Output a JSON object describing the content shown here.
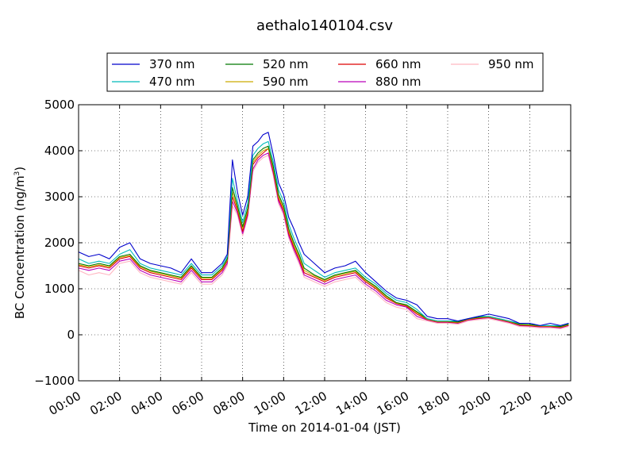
{
  "chart_data": {
    "type": "line",
    "title": "aethalo140104.csv",
    "xlabel": "Time on 2014-01-04 (JST)",
    "ylabel": "BC Concentration (ng/m",
    "ylabel_sup": "3",
    "ylabel_end": ")",
    "xlim": [
      0,
      24
    ],
    "ylim": [
      -1000,
      5000
    ],
    "x_ticks": [
      0,
      2,
      4,
      6,
      8,
      10,
      12,
      14,
      16,
      18,
      20,
      22,
      24
    ],
    "x_tick_labels": [
      "00:00",
      "02:00",
      "04:00",
      "06:00",
      "08:00",
      "10:00",
      "12:00",
      "14:00",
      "16:00",
      "18:00",
      "20:00",
      "22:00",
      "24:00"
    ],
    "y_ticks": [
      -1000,
      0,
      1000,
      2000,
      3000,
      4000,
      5000
    ],
    "y_tick_labels": [
      "−1000",
      "0",
      "1000",
      "2000",
      "3000",
      "4000",
      "5000"
    ],
    "grid": true,
    "legend_position": "top",
    "x_hours": [
      0,
      0.5,
      1,
      1.5,
      2,
      2.5,
      3,
      3.5,
      4,
      4.5,
      5,
      5.5,
      6,
      6.5,
      7,
      7.25,
      7.5,
      7.75,
      8,
      8.25,
      8.5,
      8.75,
      9,
      9.25,
      9.5,
      9.75,
      10,
      10.25,
      10.5,
      10.75,
      11,
      11.5,
      12,
      12.5,
      13,
      13.5,
      14,
      14.5,
      15,
      15.5,
      16,
      16.5,
      17,
      17.5,
      18,
      18.5,
      19,
      19.5,
      20,
      20.5,
      21,
      21.5,
      22,
      22.5,
      23,
      23.5,
      23.9
    ],
    "series": [
      {
        "name": "370 nm",
        "color": "#0000cc",
        "values": [
          1800,
          1700,
          1750,
          1650,
          1900,
          2000,
          1650,
          1550,
          1500,
          1450,
          1350,
          1650,
          1350,
          1350,
          1550,
          1750,
          3800,
          3100,
          2600,
          3000,
          4100,
          4200,
          4350,
          4400,
          3900,
          3300,
          3050,
          2550,
          2300,
          2000,
          1750,
          1550,
          1350,
          1450,
          1500,
          1600,
          1350,
          1150,
          950,
          800,
          750,
          650,
          400,
          350,
          350,
          300,
          350,
          400,
          450,
          400,
          350,
          250,
          250,
          200,
          250,
          200,
          250
        ]
      },
      {
        "name": "470 nm",
        "color": "#00bbbb",
        "values": [
          1650,
          1550,
          1600,
          1550,
          1750,
          1850,
          1550,
          1450,
          1400,
          1350,
          1300,
          1550,
          1300,
          1300,
          1500,
          1700,
          3400,
          2900,
          2450,
          2850,
          3900,
          4050,
          4150,
          4200,
          3750,
          3150,
          2900,
          2400,
          2100,
          1850,
          1550,
          1400,
          1250,
          1350,
          1400,
          1450,
          1250,
          1100,
          900,
          750,
          700,
          550,
          350,
          300,
          300,
          300,
          350,
          400,
          400,
          350,
          300,
          250,
          250,
          200,
          200,
          200,
          250
        ]
      },
      {
        "name": "520 nm",
        "color": "#007700",
        "values": [
          1550,
          1500,
          1550,
          1500,
          1700,
          1750,
          1500,
          1400,
          1350,
          1300,
          1250,
          1500,
          1250,
          1250,
          1450,
          1650,
          3200,
          2800,
          2350,
          2750,
          3800,
          3950,
          4050,
          4100,
          3650,
          3050,
          2800,
          2300,
          2000,
          1750,
          1450,
          1300,
          1200,
          1300,
          1350,
          1400,
          1200,
          1050,
          850,
          700,
          650,
          500,
          350,
          300,
          300,
          280,
          350,
          380,
          400,
          350,
          300,
          230,
          220,
          200,
          200,
          180,
          230
        ]
      },
      {
        "name": "590 nm",
        "color": "#ccaa00",
        "values": [
          1520,
          1480,
          1520,
          1480,
          1680,
          1720,
          1480,
          1380,
          1330,
          1280,
          1230,
          1480,
          1230,
          1230,
          1430,
          1620,
          3100,
          2750,
          2300,
          2700,
          3750,
          3900,
          4000,
          4050,
          3600,
          3000,
          2750,
          2250,
          1950,
          1700,
          1400,
          1280,
          1180,
          1280,
          1330,
          1380,
          1180,
          1030,
          830,
          690,
          640,
          480,
          340,
          290,
          290,
          270,
          340,
          370,
          390,
          340,
          290,
          220,
          210,
          190,
          190,
          170,
          220
        ]
      },
      {
        "name": "660 nm",
        "color": "#dd0000",
        "values": [
          1500,
          1450,
          1500,
          1450,
          1650,
          1700,
          1450,
          1350,
          1300,
          1250,
          1200,
          1450,
          1200,
          1200,
          1400,
          1600,
          3000,
          2700,
          2250,
          2650,
          3700,
          3850,
          3950,
          4050,
          3550,
          2950,
          2700,
          2200,
          1900,
          1650,
          1350,
          1250,
          1150,
          1250,
          1300,
          1350,
          1150,
          1000,
          800,
          680,
          620,
          450,
          330,
          280,
          280,
          260,
          330,
          360,
          380,
          330,
          280,
          210,
          200,
          180,
          180,
          160,
          210
        ]
      },
      {
        "name": "880 nm",
        "color": "#bb00bb",
        "values": [
          1450,
          1400,
          1450,
          1400,
          1600,
          1650,
          1400,
          1300,
          1250,
          1200,
          1150,
          1400,
          1150,
          1150,
          1350,
          1550,
          2900,
          2650,
          2200,
          2600,
          3600,
          3800,
          3900,
          3950,
          3500,
          2900,
          2650,
          2150,
          1850,
          1600,
          1300,
          1200,
          1100,
          1200,
          1250,
          1300,
          1100,
          950,
          750,
          650,
          600,
          400,
          320,
          270,
          270,
          250,
          320,
          350,
          370,
          320,
          270,
          200,
          190,
          170,
          170,
          150,
          200
        ]
      },
      {
        "name": "950 nm",
        "color": "#ffb6c1",
        "values": [
          1400,
          1300,
          1350,
          1300,
          1550,
          1600,
          1350,
          1250,
          1200,
          1150,
          1100,
          1350,
          1100,
          1100,
          1300,
          1500,
          2800,
          2600,
          2150,
          2550,
          3550,
          3750,
          3850,
          3900,
          3450,
          2850,
          2600,
          2100,
          1800,
          1550,
          1250,
          1150,
          1050,
          1150,
          1200,
          1250,
          1050,
          900,
          700,
          600,
          550,
          350,
          300,
          250,
          250,
          230,
          300,
          330,
          350,
          300,
          250,
          180,
          170,
          150,
          150,
          130,
          180
        ]
      }
    ]
  }
}
